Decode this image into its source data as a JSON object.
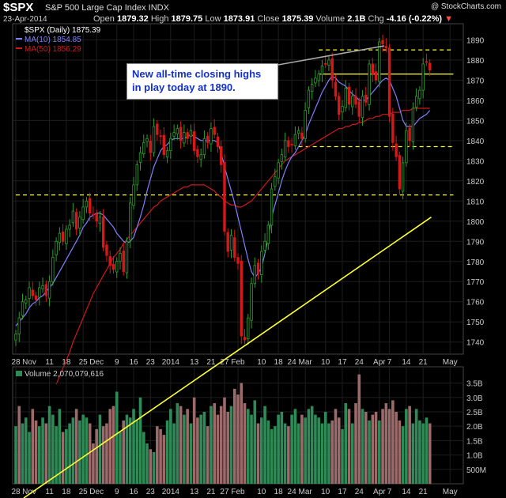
{
  "header": {
    "symbol": "$SPX",
    "description": "S&P 500 Large Cap Index  INDX",
    "watermark": "@ StockCharts.com",
    "date": "23-Apr-2014",
    "open_label": "Open",
    "open": "1879.32",
    "high_label": "High",
    "high": "1879.75",
    "low_label": "Low",
    "low": "1873.91",
    "close_label": "Close",
    "close": "1875.39",
    "volume_label": "Volume",
    "volume": "2.1B",
    "chg_label": "Chg",
    "chg": "-4.16 (-0.22%)"
  },
  "legend": {
    "price": "$SPX (Daily) 1875.39",
    "ma10": "MA(10) 1854.85",
    "ma50": "MA(50) 1856.29",
    "volume": "Volume 2,070,079,616"
  },
  "annotation": {
    "line1": "New all-time closing highs",
    "line2": "in play today at 1890."
  },
  "colors": {
    "background": "#000000",
    "up": "#2e9e2e",
    "down": "#d81818",
    "ma10": "#8080ff",
    "ma50": "#cc1a1a",
    "level": "#ffff33",
    "vol_up": "#2e8b57",
    "vol_down": "#9c6a6a",
    "grid": "#1e1e1e"
  },
  "chart_data": [
    {
      "type": "candlestick",
      "title": "$SPX (Daily)",
      "ylim": [
        1734,
        1898
      ],
      "yticks": [
        1740,
        1750,
        1760,
        1770,
        1780,
        1790,
        1800,
        1810,
        1820,
        1830,
        1840,
        1850,
        1860,
        1870,
        1880,
        1890
      ],
      "x_tick_labels": [
        {
          "label": "28",
          "day": 0
        },
        {
          "label": "Nov",
          "day": 4
        },
        {
          "label": "11",
          "day": 10
        },
        {
          "label": "18",
          "day": 15
        },
        {
          "label": "25",
          "day": 20
        },
        {
          "label": "Dec",
          "day": 24
        },
        {
          "label": "9",
          "day": 30
        },
        {
          "label": "16",
          "day": 35
        },
        {
          "label": "23",
          "day": 40
        },
        {
          "label": "2014",
          "day": 46
        },
        {
          "label": "13",
          "day": 53
        },
        {
          "label": "21",
          "day": 58
        },
        {
          "label": "27",
          "day": 62
        },
        {
          "label": "Feb",
          "day": 66
        },
        {
          "label": "10",
          "day": 73
        },
        {
          "label": "18",
          "day": 78
        },
        {
          "label": "24",
          "day": 82
        },
        {
          "label": "Mar",
          "day": 86
        },
        {
          "label": "10",
          "day": 92
        },
        {
          "label": "17",
          "day": 97
        },
        {
          "label": "24",
          "day": 102
        },
        {
          "label": "Apr",
          "day": 108
        },
        {
          "label": "7",
          "day": 111
        },
        {
          "label": "14",
          "day": 116
        },
        {
          "label": "21",
          "day": 121
        },
        {
          "label": "May",
          "day": 129
        }
      ],
      "closes": [
        1744,
        1752,
        1760,
        1761,
        1767,
        1763,
        1761,
        1767,
        1768,
        1763,
        1770,
        1782,
        1790,
        1794,
        1790,
        1796,
        1798,
        1805,
        1796,
        1802,
        1807,
        1810,
        1804,
        1803,
        1800,
        1802,
        1787,
        1783,
        1778,
        1776,
        1780,
        1784,
        1775,
        1790,
        1809,
        1818,
        1828,
        1834,
        1839,
        1841,
        1834,
        1847,
        1843,
        1842,
        1833,
        1835,
        1841,
        1844,
        1846,
        1840,
        1844,
        1841,
        1845,
        1835,
        1832,
        1833,
        1841,
        1839,
        1846,
        1843,
        1837,
        1828,
        1795,
        1785,
        1793,
        1782,
        1779,
        1743,
        1741,
        1752,
        1769,
        1778,
        1774,
        1785,
        1790,
        1798,
        1816,
        1822,
        1829,
        1833,
        1840,
        1837,
        1838,
        1843,
        1845,
        1841,
        1855,
        1865,
        1868,
        1871,
        1873,
        1877,
        1878,
        1880,
        1870,
        1862,
        1853,
        1857,
        1866,
        1858,
        1862,
        1858,
        1852,
        1862,
        1859,
        1878,
        1873,
        1870,
        1889,
        1888,
        1886,
        1852,
        1839,
        1832,
        1816,
        1829,
        1845,
        1840,
        1856,
        1862,
        1865,
        1878,
        1879,
        1875
      ],
      "ma10_values": [
        1748,
        1750,
        1752,
        1754,
        1757,
        1759,
        1760,
        1762,
        1763,
        1765,
        1767,
        1769,
        1772,
        1775,
        1778,
        1781,
        1784,
        1787,
        1790,
        1793,
        1797,
        1799,
        1802,
        1803,
        1804,
        1804,
        1803,
        1801,
        1799,
        1797,
        1794,
        1792,
        1790,
        1789,
        1790,
        1792,
        1797,
        1802,
        1808,
        1815,
        1821,
        1827,
        1831,
        1835,
        1837,
        1838,
        1840,
        1841,
        1841,
        1841,
        1841,
        1842,
        1843,
        1842,
        1841,
        1840,
        1840,
        1840,
        1840,
        1840,
        1839,
        1834,
        1827,
        1821,
        1815,
        1809,
        1802,
        1795,
        1788,
        1781,
        1775,
        1772,
        1774,
        1777,
        1784,
        1792,
        1802,
        1808,
        1814,
        1820,
        1825,
        1829,
        1832,
        1834,
        1837,
        1840,
        1843,
        1848,
        1852,
        1856,
        1860,
        1864,
        1867,
        1870,
        1872,
        1871,
        1869,
        1868,
        1867,
        1865,
        1863,
        1862,
        1860,
        1860,
        1860,
        1862,
        1864,
        1866,
        1868,
        1870,
        1871,
        1870,
        1866,
        1862,
        1856,
        1850,
        1847,
        1847,
        1847,
        1849,
        1851,
        1852,
        1853,
        1855
      ],
      "ma50_values": [
        null,
        null,
        null,
        null,
        null,
        null,
        null,
        null,
        null,
        null,
        null,
        null,
        1719,
        1723,
        1727,
        1731,
        1735,
        1740,
        1744,
        1748,
        1752,
        1756,
        1760,
        1764,
        1767,
        1770,
        1773,
        1776,
        1779,
        1782,
        1784,
        1786,
        1789,
        1791,
        1793,
        1795,
        1797,
        1799,
        1801,
        1803,
        1805,
        1807,
        1808,
        1810,
        1811,
        1812,
        1813,
        1814,
        1815,
        1816,
        1817,
        1817,
        1818,
        1818,
        1818,
        1818,
        1818,
        1817,
        1816,
        1815,
        1813,
        1812,
        1810,
        1809,
        1808,
        1808,
        1807,
        1807,
        1808,
        1809,
        1810,
        1812,
        1814,
        1816,
        1818,
        1820,
        1822,
        1824,
        1826,
        1828,
        1830,
        1831,
        1832,
        1833,
        1834,
        1835,
        1836,
        1837,
        1838,
        1839,
        1840,
        1841,
        1842,
        1843,
        1844,
        1845,
        1846,
        1846,
        1847,
        1847,
        1848,
        1848,
        1849,
        1849,
        1850,
        1851,
        1851,
        1852,
        1852,
        1853,
        1853,
        1853,
        1854,
        1854,
        1854,
        1855,
        1855,
        1855,
        1856,
        1856,
        1856,
        1856,
        1856,
        1856
      ],
      "levels": [
        {
          "value": 1885,
          "style": "dashed",
          "from_day": 90,
          "to_day": 130
        },
        {
          "value": 1873,
          "style": "solid",
          "from_day": 90,
          "to_day": 130
        },
        {
          "value": 1837,
          "style": "dashed",
          "from_day": 84,
          "to_day": 130
        },
        {
          "value": 1813,
          "style": "dashed",
          "from_day": 0,
          "to_day": 130
        }
      ],
      "trendline": {
        "from": {
          "day": 40,
          "value": 1702
        },
        "to": {
          "day": 130,
          "value": 1802
        }
      }
    },
    {
      "type": "bar",
      "title": "Volume",
      "yticks_labels": [
        "3.5B",
        "3.0B",
        "2.5B",
        "2.0B",
        "1.5B",
        "1.0B",
        "500M"
      ],
      "yticks_values": [
        3.5,
        3.0,
        2.5,
        2.0,
        1.5,
        1.0,
        0.5
      ],
      "ylim": [
        0,
        3.9
      ],
      "values_billions": [
        2.0,
        2.7,
        2.1,
        2.3,
        1.8,
        2.6,
        2.2,
        2.0,
        2.3,
        2.1,
        2.7,
        2.4,
        2.0,
        2.6,
        1.8,
        1.9,
        2.1,
        2.3,
        2.6,
        2.2,
        2.4,
        2.3,
        2.1,
        1.4,
        1.9,
        2.4,
        2.0,
        2.1,
        2.6,
        2.7,
        3.2,
        1.8,
        2.2,
        2.4,
        2.3,
        2.6,
        2.2,
        3.0,
        1.8,
        1.4,
        1.2,
        1.1,
        2.0,
        1.9,
        1.7,
        2.2,
        2.6,
        2.1,
        2.8,
        2.7,
        2.4,
        2.6,
        2.1,
        3.0,
        2.3,
        2.4,
        2.5,
        2.0,
        2.7,
        2.8,
        2.4,
        2.7,
        3.0,
        2.5,
        2.7,
        3.3,
        3.1,
        3.5,
        2.8,
        2.6,
        2.4,
        2.9,
        2.1,
        2.3,
        2.7,
        2.2,
        1.9,
        2.0,
        2.4,
        2.5,
        2.1,
        2.0,
        2.4,
        2.6,
        2.1,
        2.4,
        2.3,
        2.6,
        2.7,
        2.4,
        2.3,
        2.1,
        2.5,
        2.1,
        2.2,
        2.6,
        2.3,
        1.9,
        2.8,
        2.6,
        2.1,
        2.8,
        3.8,
        2.6,
        2.5,
        2.2,
        2.4,
        2.5,
        2.2,
        2.6,
        2.8,
        2.6,
        2.9,
        2.5,
        2.2,
        2.0,
        2.6,
        2.7,
        2.1,
        2.6,
        2.2,
        2.1,
        2.3,
        2.1
      ],
      "up_days": [
        1,
        0,
        1,
        1,
        1,
        0,
        0,
        1,
        1,
        0,
        1,
        1,
        1,
        1,
        0,
        1,
        1,
        1,
        0,
        1,
        1,
        1,
        0,
        0,
        0,
        1,
        0,
        0,
        0,
        0,
        1,
        1,
        0,
        1,
        1,
        1,
        1,
        1,
        1,
        1,
        0,
        1,
        0,
        0,
        0,
        1,
        1,
        1,
        1,
        0,
        1,
        0,
        1,
        0,
        0,
        1,
        1,
        0,
        1,
        0,
        0,
        0,
        0,
        0,
        1,
        0,
        0,
        0,
        0,
        1,
        1,
        1,
        0,
        1,
        1,
        1,
        1,
        1,
        1,
        1,
        1,
        0,
        1,
        1,
        1,
        0,
        1,
        1,
        1,
        1,
        1,
        1,
        1,
        1,
        0,
        0,
        0,
        1,
        1,
        0,
        1,
        0,
        0,
        1,
        0,
        1,
        0,
        0,
        1,
        0,
        0,
        0,
        0,
        0,
        0,
        1,
        1,
        0,
        1,
        1,
        1,
        1,
        1,
        0
      ]
    }
  ]
}
